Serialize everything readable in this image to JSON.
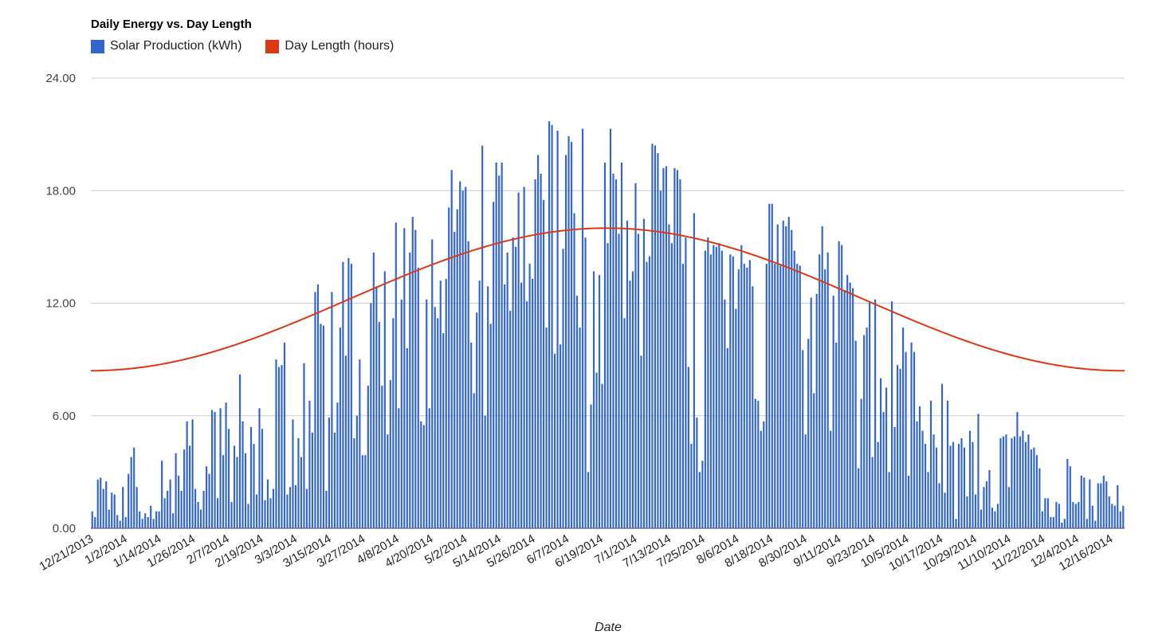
{
  "chart_data": {
    "type": "bar",
    "title": "Daily Energy vs. Day Length",
    "xlabel": "Date",
    "ylabel": "",
    "ylim": [
      0,
      24
    ],
    "yticks": [
      "0.00",
      "6.00",
      "12.00",
      "18.00",
      "24.00"
    ],
    "grid": true,
    "legend_position": "top-left",
    "x_tick_labels": [
      "12/21/2013",
      "1/2/2014",
      "1/14/2014",
      "1/26/2014",
      "2/7/2014",
      "2/19/2014",
      "3/3/2014",
      "3/15/2014",
      "3/27/2014",
      "4/8/2014",
      "4/20/2014",
      "5/2/2014",
      "5/14/2014",
      "5/26/2014",
      "6/7/2014",
      "6/19/2014",
      "7/1/2014",
      "7/13/2014",
      "7/25/2014",
      "8/6/2014",
      "8/18/2014",
      "8/30/2014",
      "9/11/2014",
      "9/23/2014",
      "10/5/2014",
      "10/17/2014",
      "10/29/2014",
      "11/10/2014",
      "11/22/2014",
      "12/4/2014",
      "12/16/2014"
    ],
    "x_start": "12/21/2013",
    "x_end": "12/21/2014",
    "series": [
      {
        "name": "Solar Production (kWh)",
        "type": "bar",
        "color": "#3366cc",
        "values": [
          0.9,
          0.6,
          2.6,
          2.7,
          2.1,
          2.5,
          1.0,
          1.9,
          1.8,
          0.7,
          0.4,
          2.2,
          0.6,
          2.9,
          3.8,
          4.3,
          2.2,
          0.9,
          0.5,
          0.8,
          0.6,
          1.2,
          0.5,
          0.9,
          0.9,
          3.6,
          1.6,
          2.0,
          2.6,
          0.8,
          4.0,
          2.8,
          2.0,
          4.2,
          5.7,
          4.4,
          5.8,
          2.1,
          1.4,
          1.0,
          2.0,
          3.3,
          2.9,
          6.3,
          6.2,
          1.6,
          6.4,
          3.9,
          6.7,
          5.3,
          1.4,
          4.4,
          3.8,
          8.2,
          5.7,
          4.0,
          1.3,
          5.4,
          4.5,
          1.8,
          6.4,
          5.3,
          1.5,
          2.6,
          1.6,
          2.1,
          9.0,
          8.6,
          8.7,
          9.9,
          1.8,
          2.2,
          5.8,
          2.3,
          4.8,
          3.8,
          8.8,
          2.1,
          6.8,
          5.1,
          12.6,
          13.0,
          10.9,
          10.8,
          2.0,
          5.9,
          12.6,
          5.1,
          6.7,
          10.7,
          14.2,
          9.2,
          14.4,
          14.1,
          4.8,
          6.0,
          9.0,
          3.9,
          3.9,
          7.6,
          12.0,
          14.7,
          12.9,
          11.0,
          7.6,
          13.7,
          5.0,
          7.9,
          11.2,
          16.3,
          6.4,
          12.2,
          16.0,
          9.6,
          14.7,
          16.6,
          15.9,
          13.9,
          5.7,
          5.5,
          12.2,
          6.4,
          15.4,
          11.8,
          11.2,
          13.2,
          10.4,
          13.3,
          17.1,
          19.1,
          15.8,
          17.0,
          18.5,
          18.0,
          18.2,
          15.3,
          9.9,
          7.2,
          11.5,
          13.2,
          20.4,
          6.0,
          12.9,
          10.9,
          17.4,
          19.5,
          18.8,
          19.5,
          13.0,
          14.7,
          11.6,
          15.5,
          15.0,
          17.9,
          13.1,
          18.2,
          12.1,
          14.1,
          13.3,
          18.6,
          19.9,
          18.9,
          17.5,
          10.7,
          21.7,
          21.5,
          9.3,
          21.2,
          9.8,
          14.9,
          19.9,
          20.9,
          20.6,
          16.8,
          12.4,
          10.7,
          21.3,
          15.5,
          3.0,
          6.6,
          13.7,
          8.3,
          13.5,
          7.7,
          19.5,
          15.2,
          21.3,
          18.9,
          18.6,
          15.7,
          19.5,
          11.2,
          16.4,
          13.2,
          13.7,
          18.4,
          15.7,
          9.2,
          16.5,
          14.2,
          14.5,
          20.5,
          20.4,
          20.0,
          18.0,
          19.2,
          19.3,
          16.2,
          15.2,
          19.2,
          19.1,
          18.6,
          14.1,
          15.5,
          8.6,
          4.5,
          16.8,
          5.9,
          3.0,
          3.6,
          14.8,
          15.5,
          14.6,
          15.1,
          15.0,
          15.2,
          14.8,
          12.2,
          9.6,
          14.6,
          14.5,
          11.7,
          13.8,
          15.1,
          14.1,
          13.9,
          14.3,
          12.9,
          6.9,
          6.8,
          5.2,
          5.7,
          14.1,
          17.3,
          17.3,
          14.1,
          16.2,
          14.0,
          16.4,
          16.1,
          16.6,
          15.9,
          14.8,
          14.1,
          14.0,
          9.5,
          5.0,
          10.1,
          12.3,
          7.2,
          12.5,
          14.6,
          16.1,
          13.8,
          14.7,
          5.2,
          12.4,
          9.9,
          15.3,
          15.1,
          12.7,
          13.5,
          13.1,
          12.8,
          10.0,
          3.2,
          6.9,
          10.3,
          10.7,
          12.1,
          3.8,
          12.2,
          4.6,
          8.0,
          6.2,
          7.5,
          3.0,
          12.1,
          5.4,
          8.7,
          8.5,
          10.7,
          9.4,
          2.8,
          9.9,
          9.4,
          5.7,
          6.5,
          5.2,
          4.5,
          3.0,
          6.8,
          5.0,
          4.3,
          2.4,
          7.7,
          1.9,
          6.8,
          4.4,
          4.6,
          0.5,
          4.5,
          4.8,
          4.3,
          1.7,
          5.2,
          4.6,
          1.8,
          6.1,
          1.0,
          2.2,
          2.5,
          3.1,
          1.1,
          0.9,
          1.3,
          4.8,
          4.9,
          5.0,
          2.2,
          4.8,
          4.9,
          6.2,
          4.9,
          5.2,
          4.6,
          5.0,
          4.2,
          4.3,
          3.9,
          3.2,
          0.9,
          1.6,
          1.6,
          0.6,
          0.6,
          1.4,
          1.3,
          0.3,
          0.5,
          3.7,
          3.3,
          1.4,
          1.3,
          1.4,
          2.8,
          2.7,
          0.5,
          2.6,
          1.2,
          0.4,
          2.4,
          2.4,
          2.8,
          2.5,
          1.7,
          1.3,
          1.2,
          2.3,
          0.9,
          1.2
        ]
      },
      {
        "name": "Day Length (hours)",
        "type": "line",
        "color": "#dc3912",
        "min": 8.4,
        "max": 16.0,
        "min_date": "12/21/2013",
        "max_date": "6/21/2014"
      }
    ]
  }
}
